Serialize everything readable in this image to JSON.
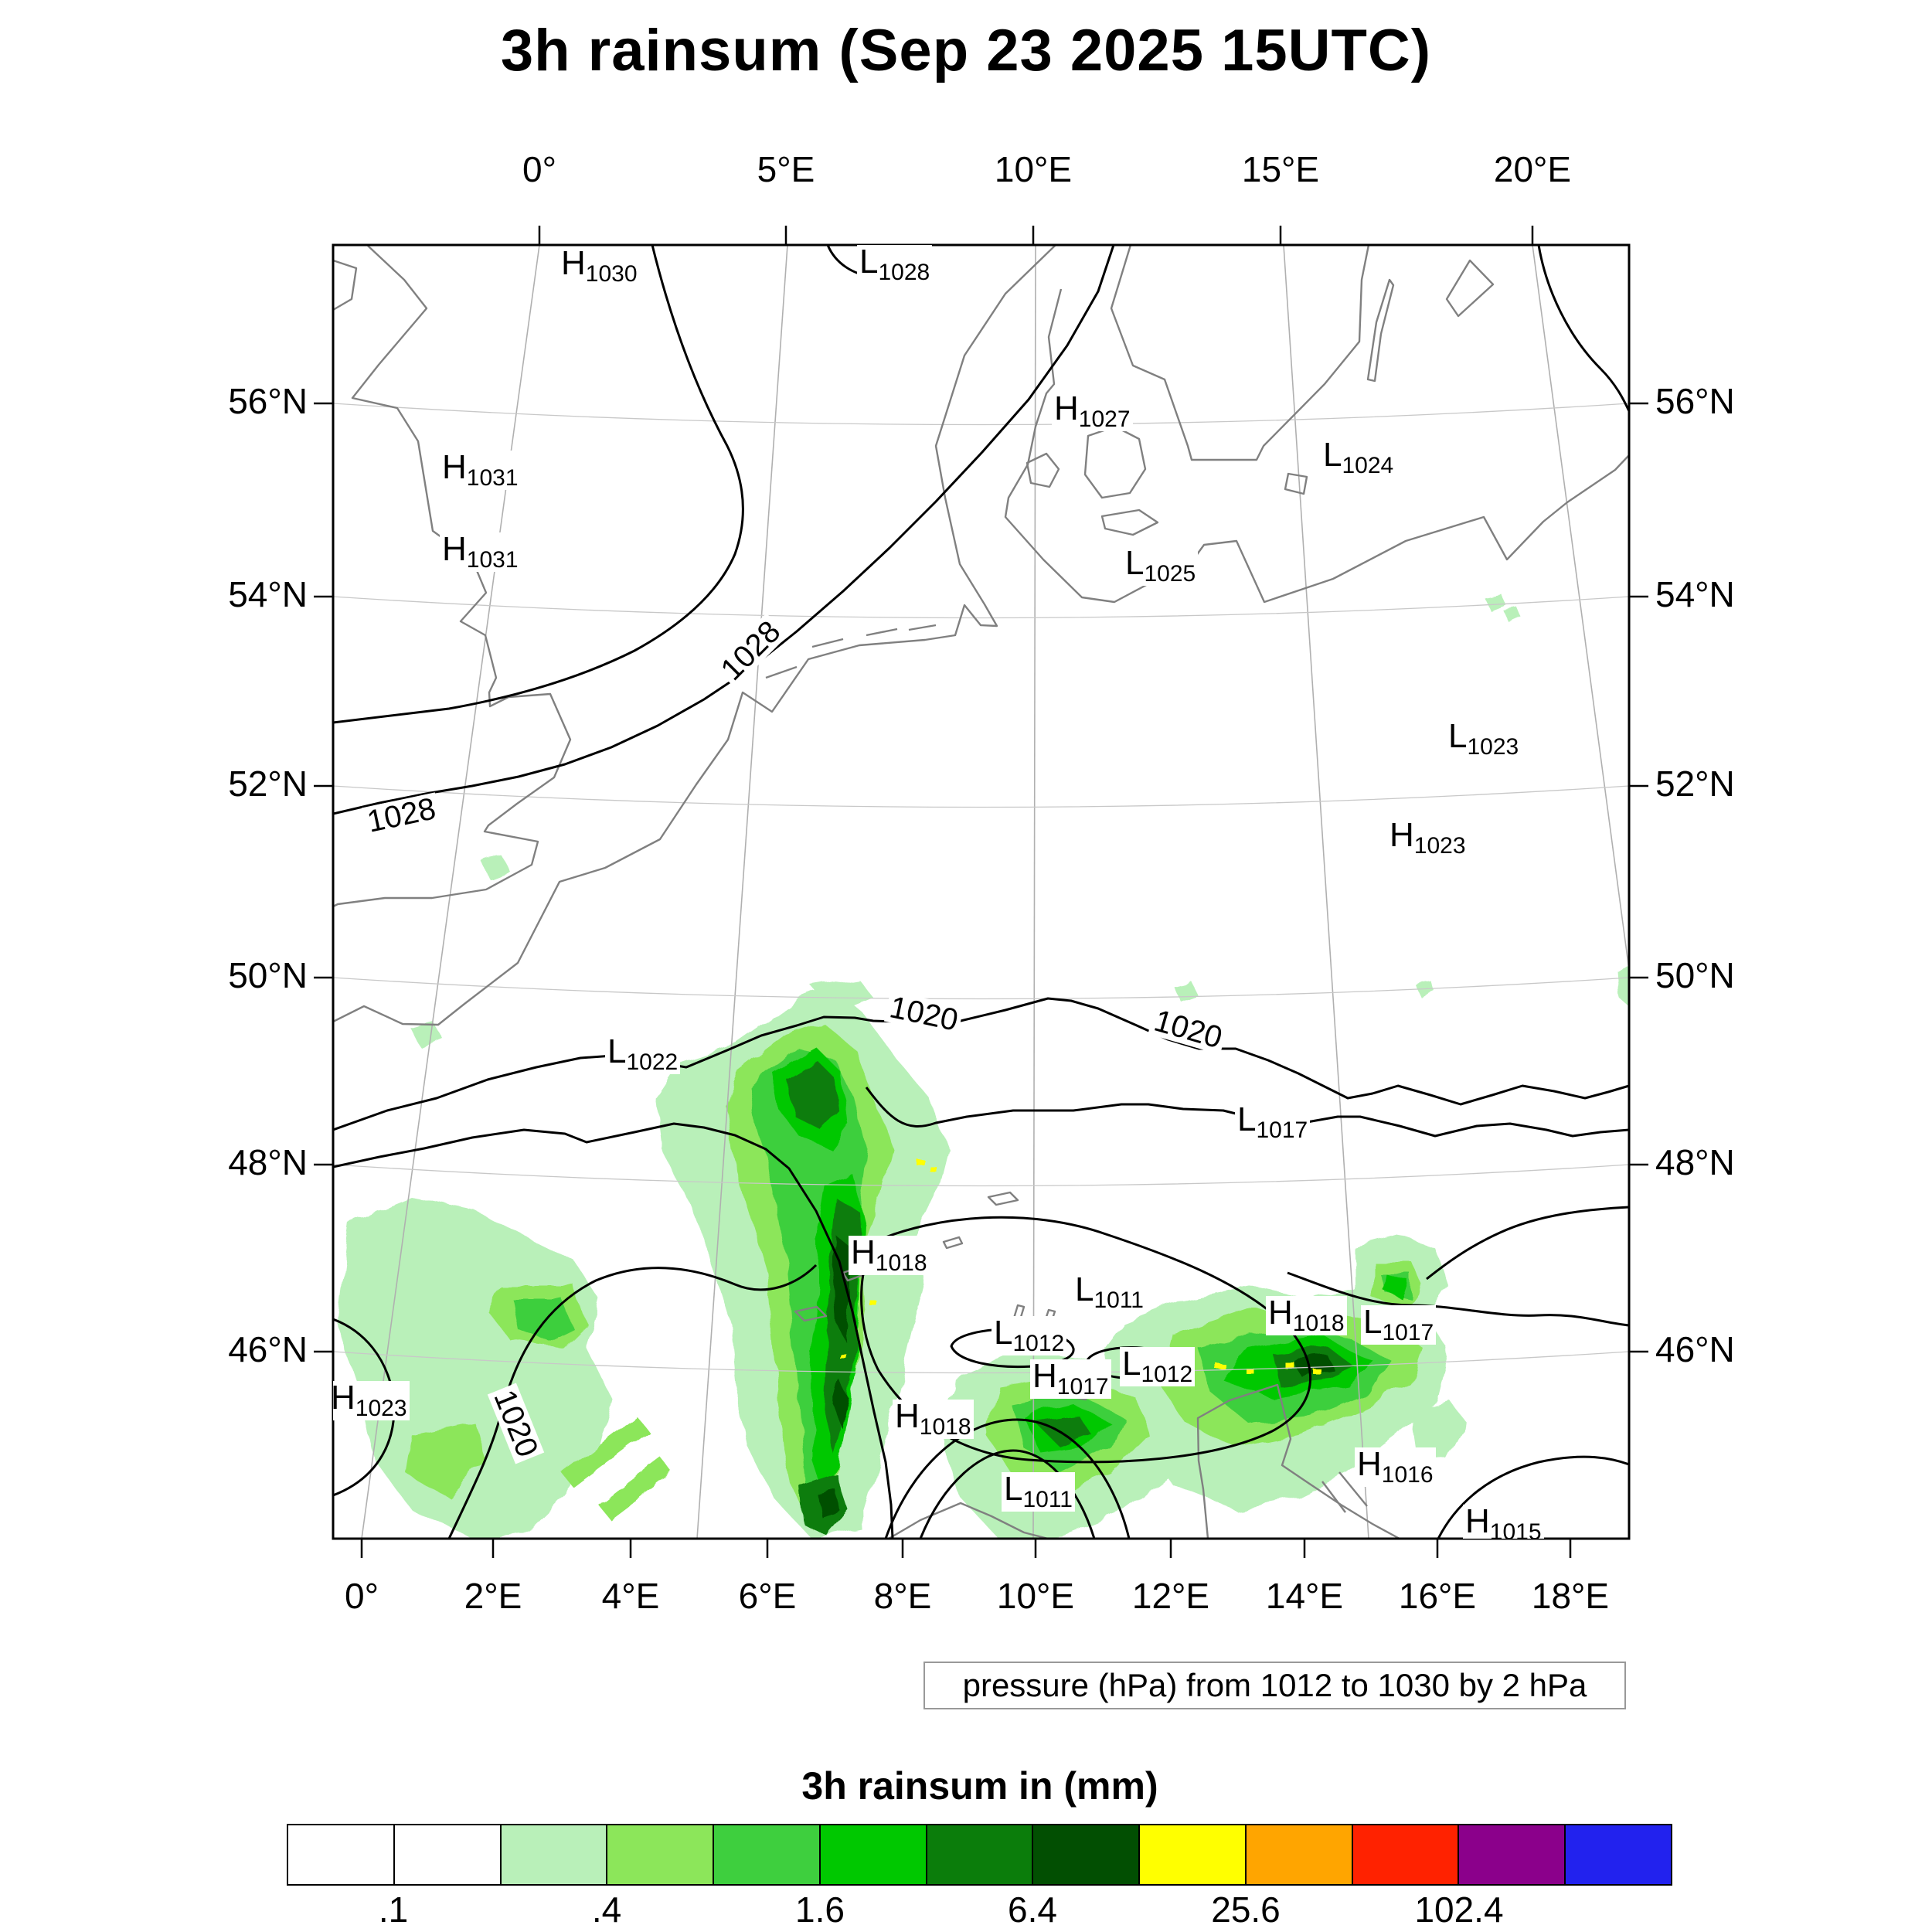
{
  "title": "3h rainsum (Sep 23 2025 15UTC)",
  "axes": {
    "top": [
      "0°",
      "5°E",
      "10°E",
      "15°E",
      "20°E"
    ],
    "bottom": [
      "0°",
      "2°E",
      "4°E",
      "6°E",
      "8°E",
      "10°E",
      "12°E",
      "14°E",
      "16°E",
      "18°E"
    ],
    "left": [
      "56°N",
      "54°N",
      "52°N",
      "50°N",
      "48°N",
      "46°N"
    ],
    "right": [
      "56°N",
      "54°N",
      "52°N",
      "50°N",
      "48°N",
      "46°N"
    ]
  },
  "pressure_caption": "pressure (hPa) from 1012 to 1030 by 2 hPa",
  "legend": {
    "title": "3h rainsum in (mm)",
    "tick_labels": [
      ".1",
      ".4",
      "1.6",
      "6.4",
      "25.6",
      "102.4"
    ],
    "colors": [
      "#ffffff",
      "#ffffff",
      "#b9f0b9",
      "#8ce65a",
      "#3ecf3e",
      "#00c800",
      "#0b7d0b",
      "#024f02",
      "#ffff00",
      "#ffa500",
      "#ff2200",
      "#8b008b",
      "#2222ee"
    ]
  },
  "map": {
    "centers": [
      {
        "letter": "H",
        "value": "1030"
      },
      {
        "letter": "L",
        "value": "1028"
      },
      {
        "letter": "H",
        "value": "1027"
      },
      {
        "letter": "L",
        "value": "1024"
      },
      {
        "letter": "H",
        "value": "1031"
      },
      {
        "letter": "H",
        "value": "1031"
      },
      {
        "letter": "L",
        "value": "1025"
      },
      {
        "letter": "L",
        "value": "1023"
      },
      {
        "letter": "H",
        "value": "1023"
      },
      {
        "letter": "L",
        "value": "1022"
      },
      {
        "letter": "L",
        "value": "1017"
      },
      {
        "letter": "H",
        "value": "1018"
      },
      {
        "letter": "L",
        "value": "1011"
      },
      {
        "letter": "H",
        "value": "1018"
      },
      {
        "letter": "L",
        "value": "1017"
      },
      {
        "letter": "L",
        "value": "1012"
      },
      {
        "letter": "L",
        "value": "1012"
      },
      {
        "letter": "H",
        "value": "1017"
      },
      {
        "letter": "H",
        "value": "1023"
      },
      {
        "letter": "H",
        "value": "1018"
      },
      {
        "letter": "L",
        "value": "1011"
      },
      {
        "letter": "H",
        "value": "1016"
      },
      {
        "letter": "H",
        "value": "1015"
      }
    ],
    "contour_labels": [
      "1028",
      "1028",
      "1020",
      "1020",
      "1020"
    ]
  }
}
